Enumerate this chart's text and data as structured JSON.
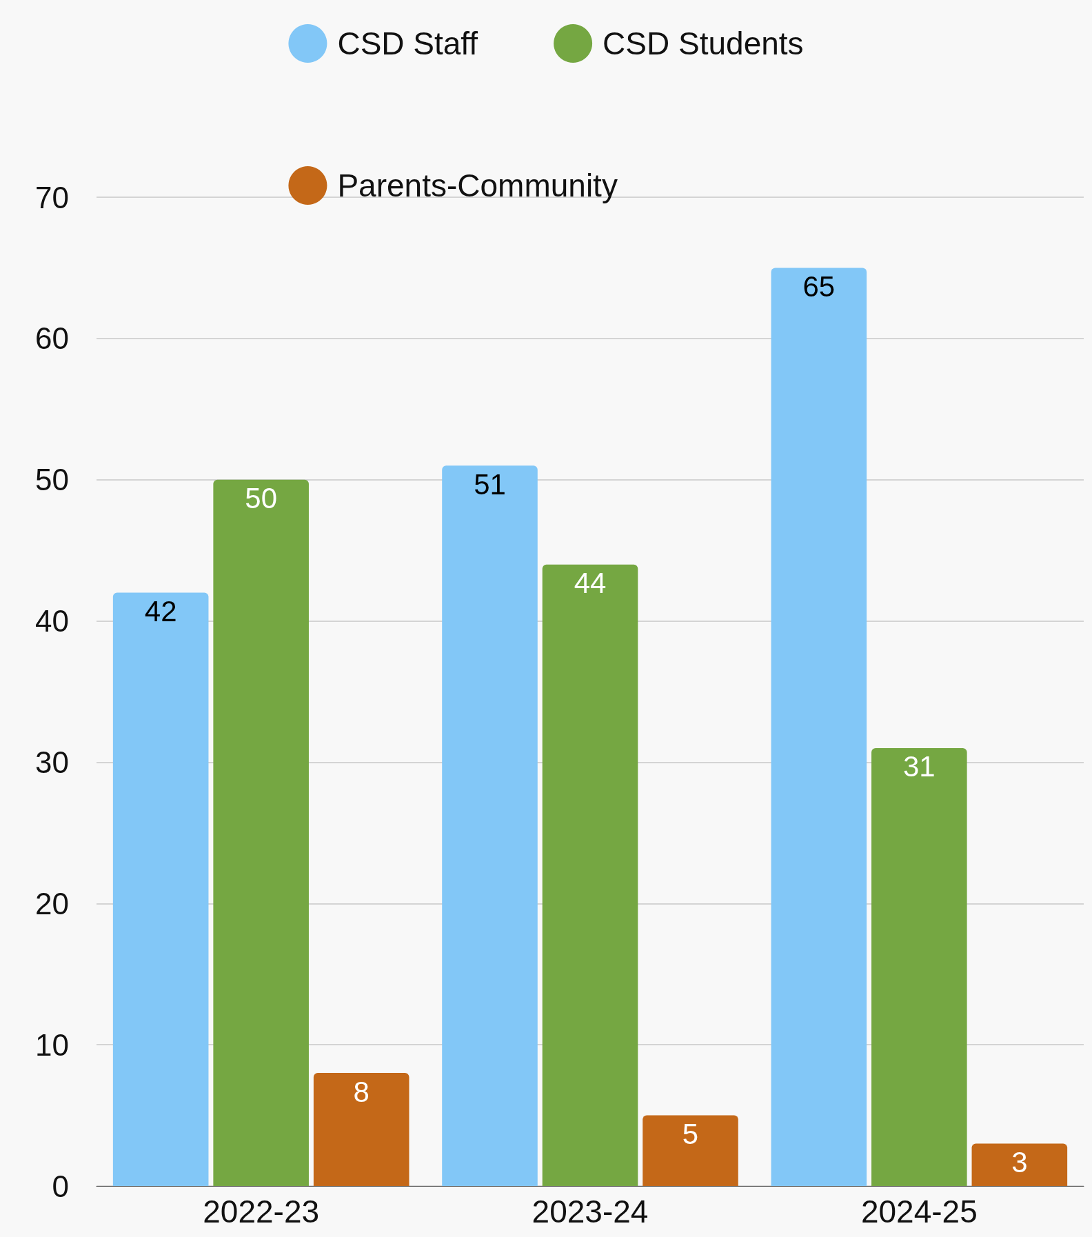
{
  "chart_data": {
    "type": "bar",
    "categories": [
      "2022-23",
      "2023-24",
      "2024-25"
    ],
    "series": [
      {
        "name": "CSD Staff",
        "color": "#82c7f7",
        "values": [
          42,
          51,
          65
        ]
      },
      {
        "name": "CSD Students",
        "color": "#75a742",
        "values": [
          50,
          44,
          31
        ]
      },
      {
        "name": "Parents-Community",
        "color": "#c46818",
        "values": [
          8,
          5,
          3
        ]
      }
    ],
    "ylim": [
      0,
      70
    ],
    "yticks": [
      0,
      10,
      20,
      30,
      40,
      50,
      60,
      70
    ],
    "grid": "y",
    "legend": "top",
    "data_labels": true
  }
}
